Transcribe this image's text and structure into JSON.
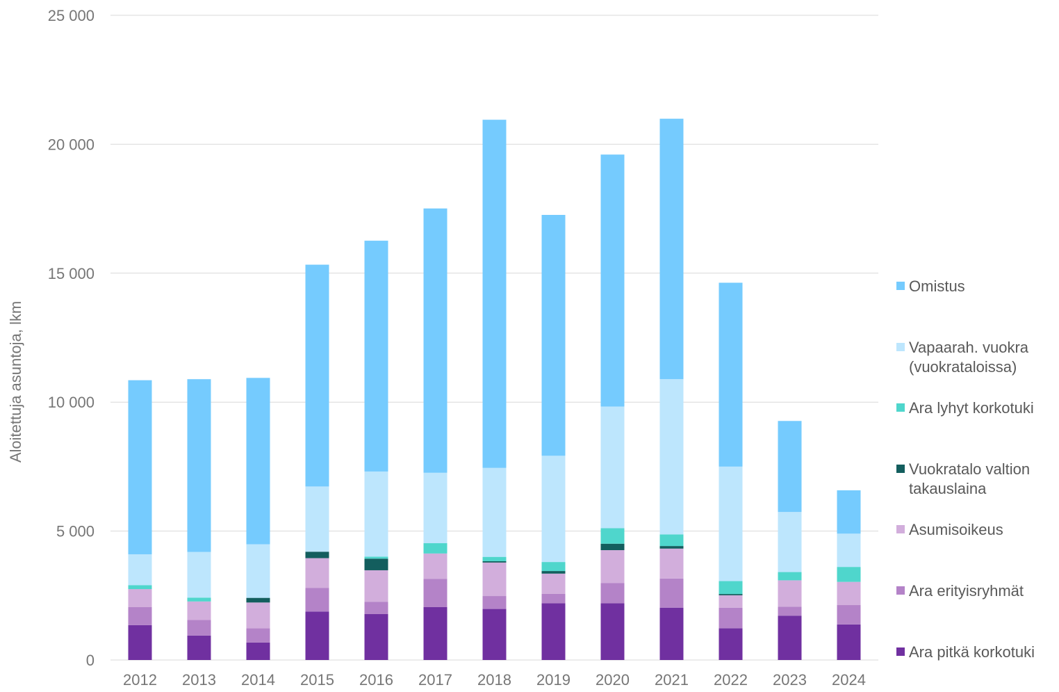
{
  "chart_data": {
    "type": "bar",
    "stacked": true,
    "title": "",
    "xlabel": "",
    "ylabel": "Aloitettuja asuntoja, lkm",
    "ylim": [
      0,
      25000
    ],
    "yticks": [
      0,
      5000,
      10000,
      15000,
      20000,
      25000
    ],
    "ytick_labels": [
      "0",
      "5 000",
      "10 000",
      "15 000",
      "20 000",
      "25 000"
    ],
    "grid": true,
    "legend_position": "right",
    "categories": [
      "2012",
      "2013",
      "2014",
      "2015",
      "2016",
      "2017",
      "2018",
      "2019",
      "2020",
      "2021",
      "2022",
      "2023",
      "2024"
    ],
    "series": [
      {
        "name": "Ara pitkä korkotuki",
        "color": "#7030a0",
        "values": [
          1350,
          950,
          680,
          1880,
          1780,
          2050,
          1980,
          2200,
          2200,
          2030,
          1230,
          1720,
          1380
        ]
      },
      {
        "name": "Ara erityisryhmät",
        "color": "#b483c8",
        "values": [
          700,
          600,
          550,
          920,
          480,
          1100,
          500,
          370,
          780,
          1130,
          800,
          350,
          750
        ]
      },
      {
        "name": "Asumisoikeus",
        "color": "#d2aedc",
        "values": [
          700,
          720,
          1000,
          1150,
          1220,
          980,
          1300,
          780,
          1280,
          1160,
          480,
          1020,
          900
        ]
      },
      {
        "name": "Vuokratalo valtion takauslaina",
        "color": "#135e5e",
        "values": [
          0,
          0,
          180,
          250,
          450,
          0,
          50,
          100,
          250,
          100,
          50,
          0,
          0
        ]
      },
      {
        "name": "Ara lyhyt korkotuki",
        "color": "#4fd6cc",
        "values": [
          150,
          150,
          0,
          0,
          80,
          400,
          170,
          350,
          600,
          450,
          500,
          320,
          580
        ]
      },
      {
        "name": "Vapaarah. vuokra (vuokrataloissa)",
        "color": "#bde6fd",
        "values": [
          1200,
          1770,
          2080,
          2530,
          3300,
          2730,
          3450,
          4120,
          4720,
          6020,
          4440,
          2330,
          1290
        ]
      },
      {
        "name": "Omistus",
        "color": "#75cbfe",
        "values": [
          6750,
          6700,
          6450,
          8600,
          8950,
          10250,
          13500,
          9340,
          9770,
          10100,
          7130,
          3530,
          1680
        ]
      }
    ],
    "legend": [
      {
        "label": "Omistus",
        "color": "#75cbfe"
      },
      {
        "label": "Vapaarah. vuokra (vuokrataloissa)",
        "color": "#bde6fd"
      },
      {
        "label": "Ara lyhyt korkotuki",
        "color": "#4fd6cc"
      },
      {
        "label": "Vuokratalo valtion takauslaina",
        "color": "#135e5e"
      },
      {
        "label": "Asumisoikeus",
        "color": "#d2aedc"
      },
      {
        "label": "Ara erityisryhmät",
        "color": "#b483c8"
      },
      {
        "label": "Ara pitkä korkotuki",
        "color": "#7030a0"
      }
    ]
  }
}
